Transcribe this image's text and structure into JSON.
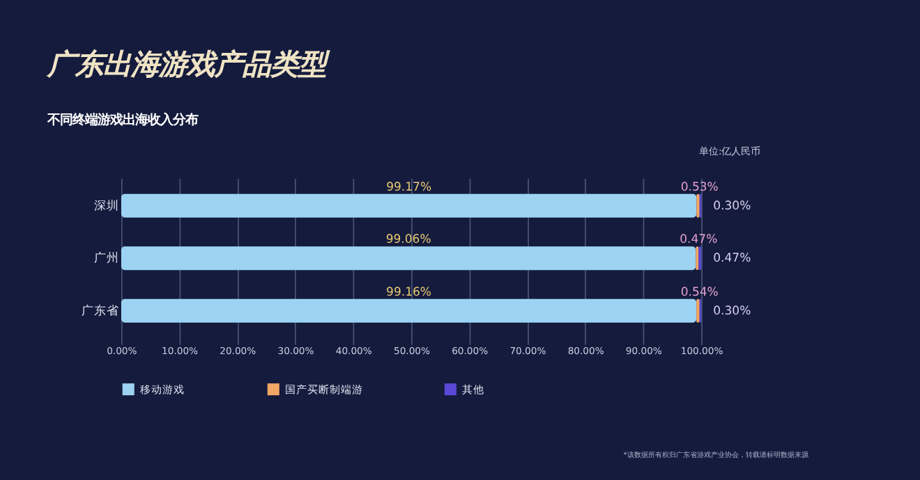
{
  "chart_data": {
    "type": "bar",
    "orientation": "horizontal",
    "stacked": true,
    "title": "广东出海游戏产品类型",
    "subtitle": "不同终端游戏出海收入分布",
    "annotations": [
      "单位:亿人民币",
      "*该数据所有权归广东省游戏产业协会，转载请标明数据来源"
    ],
    "categories": [
      "深圳",
      "广州",
      "广东省"
    ],
    "series": [
      {
        "name": "移动游戏",
        "color": "#9dd3f2",
        "values": [
          99.17,
          99.06,
          99.16
        ],
        "value_labels": [
          "99.17%",
          "99.06%",
          "99.16%"
        ]
      },
      {
        "name": "国产买断制端游",
        "color": "#f2a766",
        "values": [
          0.53,
          0.47,
          0.54
        ],
        "value_labels": [
          "0.53%",
          "0.47%",
          "0.54%"
        ]
      },
      {
        "name": "其他",
        "color": "#5b47d6",
        "values": [
          0.3,
          0.47,
          0.3
        ],
        "value_labels": [
          "0.30%",
          "0.47%",
          "0.30%"
        ]
      }
    ],
    "xlim": [
      0,
      100
    ],
    "xticks": [
      {
        "value": 0,
        "label": "0.00%"
      },
      {
        "value": 10,
        "label": "10.00%"
      },
      {
        "value": 20,
        "label": "20.00%"
      },
      {
        "value": 30,
        "label": "30.00%"
      },
      {
        "value": 40,
        "label": "40.00%"
      },
      {
        "value": 50,
        "label": "50.00%"
      },
      {
        "value": 60,
        "label": "60.00%"
      },
      {
        "value": 70,
        "label": "70.00%"
      },
      {
        "value": 80,
        "label": "80.00%"
      },
      {
        "value": 90,
        "label": "90.00%"
      },
      {
        "value": 100,
        "label": "100.00%"
      }
    ],
    "grid": "x",
    "legend": "bottom"
  }
}
